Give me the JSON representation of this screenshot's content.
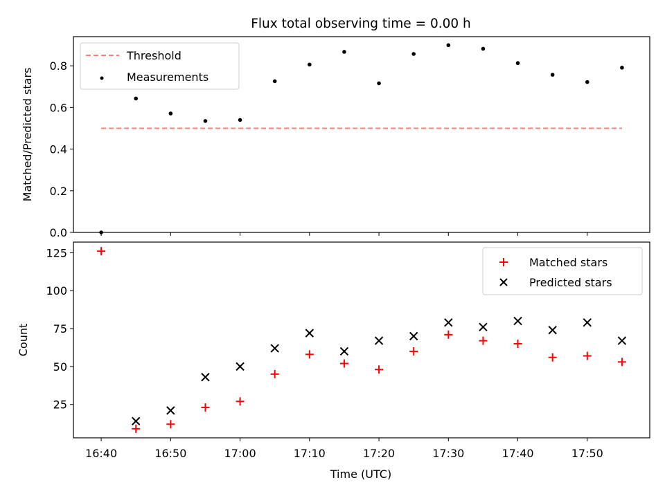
{
  "chart_data": [
    {
      "type": "line+scatter",
      "title": "Flux total observing time = 0.00 h",
      "xlabel": "",
      "ylabel": "Matched/Predicted stars",
      "ylim": [
        0,
        0.94
      ],
      "yticks": [
        0.0,
        0.2,
        0.4,
        0.6,
        0.8
      ],
      "ytick_labels": [
        "0.0",
        "0.2",
        "0.4",
        "0.6",
        "0.8"
      ],
      "x": [
        "16:40",
        "16:45",
        "16:50",
        "16:55",
        "17:00",
        "17:05",
        "17:10",
        "17:15",
        "17:20",
        "17:25",
        "17:30",
        "17:35",
        "17:40",
        "17:45",
        "17:50",
        "17:55"
      ],
      "series": [
        {
          "name": "Threshold",
          "kind": "line",
          "style": "dashed",
          "color": "#ff7f7f",
          "values": [
            0.5,
            0.5,
            0.5,
            0.5,
            0.5,
            0.5,
            0.5,
            0.5,
            0.5,
            0.5,
            0.5,
            0.5,
            0.5,
            0.5,
            0.5,
            0.5
          ]
        },
        {
          "name": "Measurements",
          "kind": "scatter",
          "marker": "dot",
          "color": "#000000",
          "values": [
            0.0,
            0.643,
            0.571,
            0.535,
            0.54,
            0.726,
            0.806,
            0.867,
            0.716,
            0.857,
            0.899,
            0.882,
            0.813,
            0.757,
            0.722,
            0.791
          ]
        }
      ],
      "legend": {
        "position": "upper-left"
      },
      "grid": false
    },
    {
      "type": "scatter",
      "title": "",
      "xlabel": "Time (UTC)",
      "ylabel": "Count",
      "xlim": [
        "16:36",
        "17:59"
      ],
      "ylim": [
        3,
        132
      ],
      "yticks": [
        25,
        50,
        75,
        100,
        125
      ],
      "ytick_labels": [
        "25",
        "50",
        "75",
        "100",
        "125"
      ],
      "xtick_labels": [
        "16:40",
        "16:50",
        "17:00",
        "17:10",
        "17:20",
        "17:30",
        "17:40",
        "17:50"
      ],
      "x": [
        "16:40",
        "16:45",
        "16:50",
        "16:55",
        "17:00",
        "17:05",
        "17:10",
        "17:15",
        "17:20",
        "17:25",
        "17:30",
        "17:35",
        "17:40",
        "17:45",
        "17:50",
        "17:55"
      ],
      "series": [
        {
          "name": "Matched stars",
          "marker": "plus",
          "color": "#ff0000",
          "values": [
            126,
            9,
            12,
            23,
            27,
            45,
            58,
            52,
            48,
            60,
            71,
            67,
            65,
            56,
            57,
            53
          ]
        },
        {
          "name": "Predicted stars",
          "marker": "x",
          "color": "#000000",
          "values": [
            null,
            14,
            21,
            43,
            50,
            62,
            72,
            60,
            67,
            70,
            79,
            76,
            80,
            74,
            79,
            67
          ]
        }
      ],
      "legend": {
        "position": "upper-right"
      },
      "grid": false
    }
  ]
}
